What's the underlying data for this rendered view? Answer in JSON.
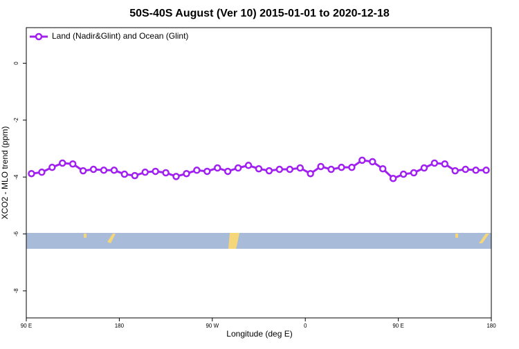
{
  "chart_data": {
    "type": "line",
    "title": "50S-40S August (Ver 10)   2015-01-01 to 2020-12-18",
    "xlabel": "Longitude (deg E)",
    "ylabel": "XCO2 - MLO trend (ppm)",
    "legend_position": "top-left",
    "x": [
      95,
      105,
      115,
      125,
      135,
      145,
      155,
      165,
      175,
      185,
      195,
      205,
      215,
      225,
      235,
      245,
      255,
      265,
      275,
      285,
      295,
      305,
      315,
      325,
      335,
      345,
      355,
      365,
      375,
      385,
      395,
      405,
      415,
      425,
      435,
      445,
      455,
      465,
      475,
      485,
      495,
      505,
      515,
      525,
      535
    ],
    "series": [
      {
        "name": "Land (Nadir&Glint) and Ocean (Glint)",
        "color": "#a020f0",
        "values": [
          -3.88,
          -3.83,
          -3.66,
          -3.51,
          -3.54,
          -3.78,
          -3.73,
          -3.76,
          -3.76,
          -3.9,
          -3.95,
          -3.83,
          -3.8,
          -3.85,
          -3.98,
          -3.88,
          -3.76,
          -3.8,
          -3.68,
          -3.8,
          -3.68,
          -3.59,
          -3.71,
          -3.78,
          -3.73,
          -3.73,
          -3.68,
          -3.88,
          -3.63,
          -3.73,
          -3.66,
          -3.66,
          -3.41,
          -3.46,
          -3.71,
          -4.05,
          -3.9,
          -3.85,
          -3.68,
          -3.51,
          -3.54,
          -3.78,
          -3.73,
          -3.76,
          -3.76
        ]
      }
    ],
    "xlim": [
      90,
      540
    ],
    "xticks": [
      {
        "value": 90,
        "label": "90 E"
      },
      180,
      {
        "value": 270,
        "label": "90 W"
      },
      {
        "value": 360,
        "label": "0"
      },
      {
        "value": 450,
        "label": "90 E"
      },
      {
        "value": 540,
        "label": "180"
      }
    ],
    "ylim": [
      -8.95,
      1.25
    ],
    "yticks": [
      -8,
      -6,
      -4,
      -2,
      0
    ]
  }
}
